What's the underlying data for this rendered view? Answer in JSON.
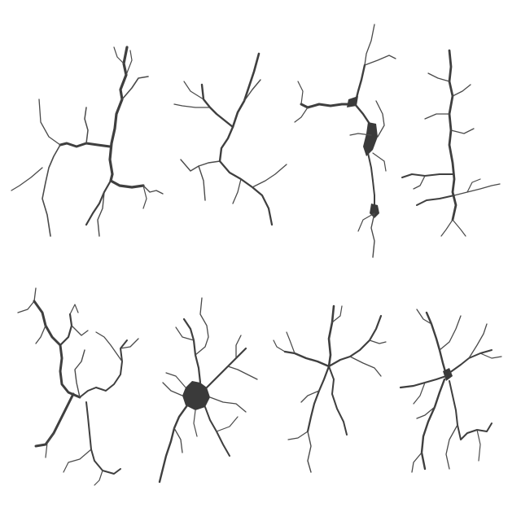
{
  "image": {
    "background_color": "#ffffff",
    "crack_color": "#3f3f3f",
    "cracks": [
      {
        "id": "crack-1"
      },
      {
        "id": "crack-2"
      },
      {
        "id": "crack-3"
      },
      {
        "id": "crack-4"
      },
      {
        "id": "crack-5"
      },
      {
        "id": "crack-6"
      },
      {
        "id": "crack-7"
      },
      {
        "id": "crack-8"
      }
    ]
  }
}
